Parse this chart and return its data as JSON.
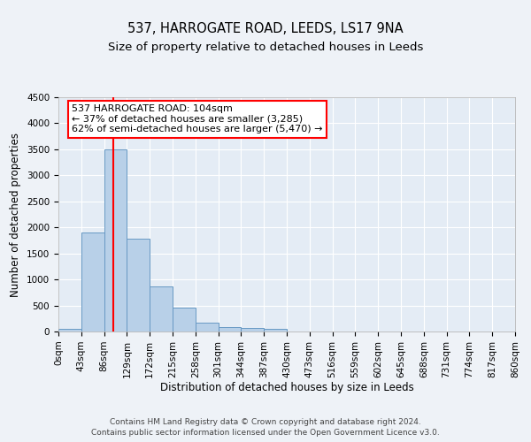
{
  "title": "537, HARROGATE ROAD, LEEDS, LS17 9NA",
  "subtitle": "Size of property relative to detached houses in Leeds",
  "xlabel": "Distribution of detached houses by size in Leeds",
  "ylabel": "Number of detached properties",
  "bin_edges": [
    0,
    43,
    86,
    129,
    172,
    215,
    258,
    301,
    344,
    387,
    430,
    473,
    516,
    559,
    602,
    645,
    688,
    731,
    774,
    817,
    860
  ],
  "bar_values": [
    50,
    1900,
    3500,
    1780,
    860,
    460,
    175,
    90,
    60,
    50,
    0,
    0,
    0,
    0,
    0,
    0,
    0,
    0,
    0,
    0
  ],
  "bar_color": "#b8d0e8",
  "bar_edge_color": "#6899c4",
  "red_line_x": 104,
  "ylim": [
    0,
    4500
  ],
  "yticks": [
    0,
    500,
    1000,
    1500,
    2000,
    2500,
    3000,
    3500,
    4000,
    4500
  ],
  "annotation_line1": "537 HARROGATE ROAD: 104sqm",
  "annotation_line2": "← 37% of detached houses are smaller (3,285)",
  "annotation_line3": "62% of semi-detached houses are larger (5,470) →",
  "footer_line1": "Contains HM Land Registry data © Crown copyright and database right 2024.",
  "footer_line2": "Contains public sector information licensed under the Open Government Licence v3.0.",
  "bg_color": "#eef2f7",
  "plot_bg_color": "#e4ecf5",
  "grid_color": "#ffffff",
  "title_fontsize": 10.5,
  "subtitle_fontsize": 9.5,
  "axis_label_fontsize": 8.5,
  "tick_fontsize": 7.5,
  "footer_fontsize": 6.5,
  "annot_fontsize": 8
}
